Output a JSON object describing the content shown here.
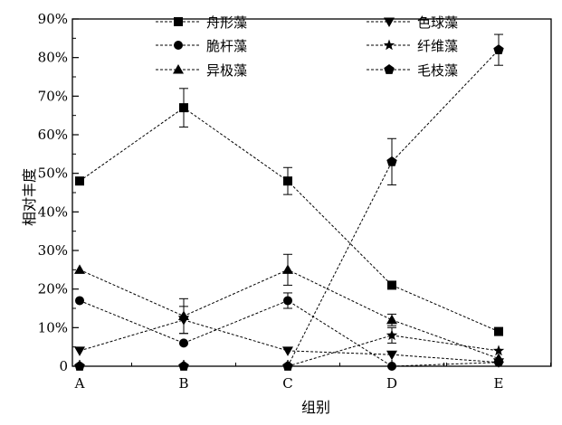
{
  "chart_data": {
    "type": "line",
    "xlabel": "组别",
    "ylabel": "相对丰度",
    "categories": [
      "A",
      "B",
      "C",
      "D",
      "E"
    ],
    "ylim": [
      0,
      90
    ],
    "yticks": [
      "0",
      "10%",
      "20%",
      "30%",
      "40%",
      "50%",
      "60%",
      "70%",
      "80%",
      "90%"
    ],
    "grid": false,
    "legend_position": "top",
    "line_style": "dashed",
    "series": [
      {
        "name": "舟形藻",
        "marker": "square",
        "values": [
          48,
          67,
          48,
          21,
          9
        ],
        "errors": [
          0,
          5,
          3.5,
          0,
          0
        ]
      },
      {
        "name": "脆杆藻",
        "marker": "circle",
        "values": [
          17,
          6,
          17,
          0,
          1
        ],
        "errors": [
          0,
          0,
          2,
          0,
          0
        ]
      },
      {
        "name": "异极藻",
        "marker": "triangle-up",
        "values": [
          25,
          13,
          25,
          12,
          2
        ],
        "errors": [
          0,
          4.5,
          4,
          1.5,
          0
        ]
      },
      {
        "name": "色球藻",
        "marker": "triangle-down",
        "values": [
          4,
          12,
          4,
          3,
          1
        ],
        "errors": [
          0,
          3.5,
          0,
          0,
          0
        ]
      },
      {
        "name": "纤维藻",
        "marker": "star",
        "values": [
          0,
          0,
          0,
          8,
          4
        ],
        "errors": [
          0,
          0,
          0,
          2,
          0
        ]
      },
      {
        "name": "毛枝藻",
        "marker": "pentagon",
        "values": [
          0,
          0,
          0,
          53,
          82
        ],
        "errors": [
          0,
          0,
          0,
          6,
          4
        ]
      }
    ]
  }
}
